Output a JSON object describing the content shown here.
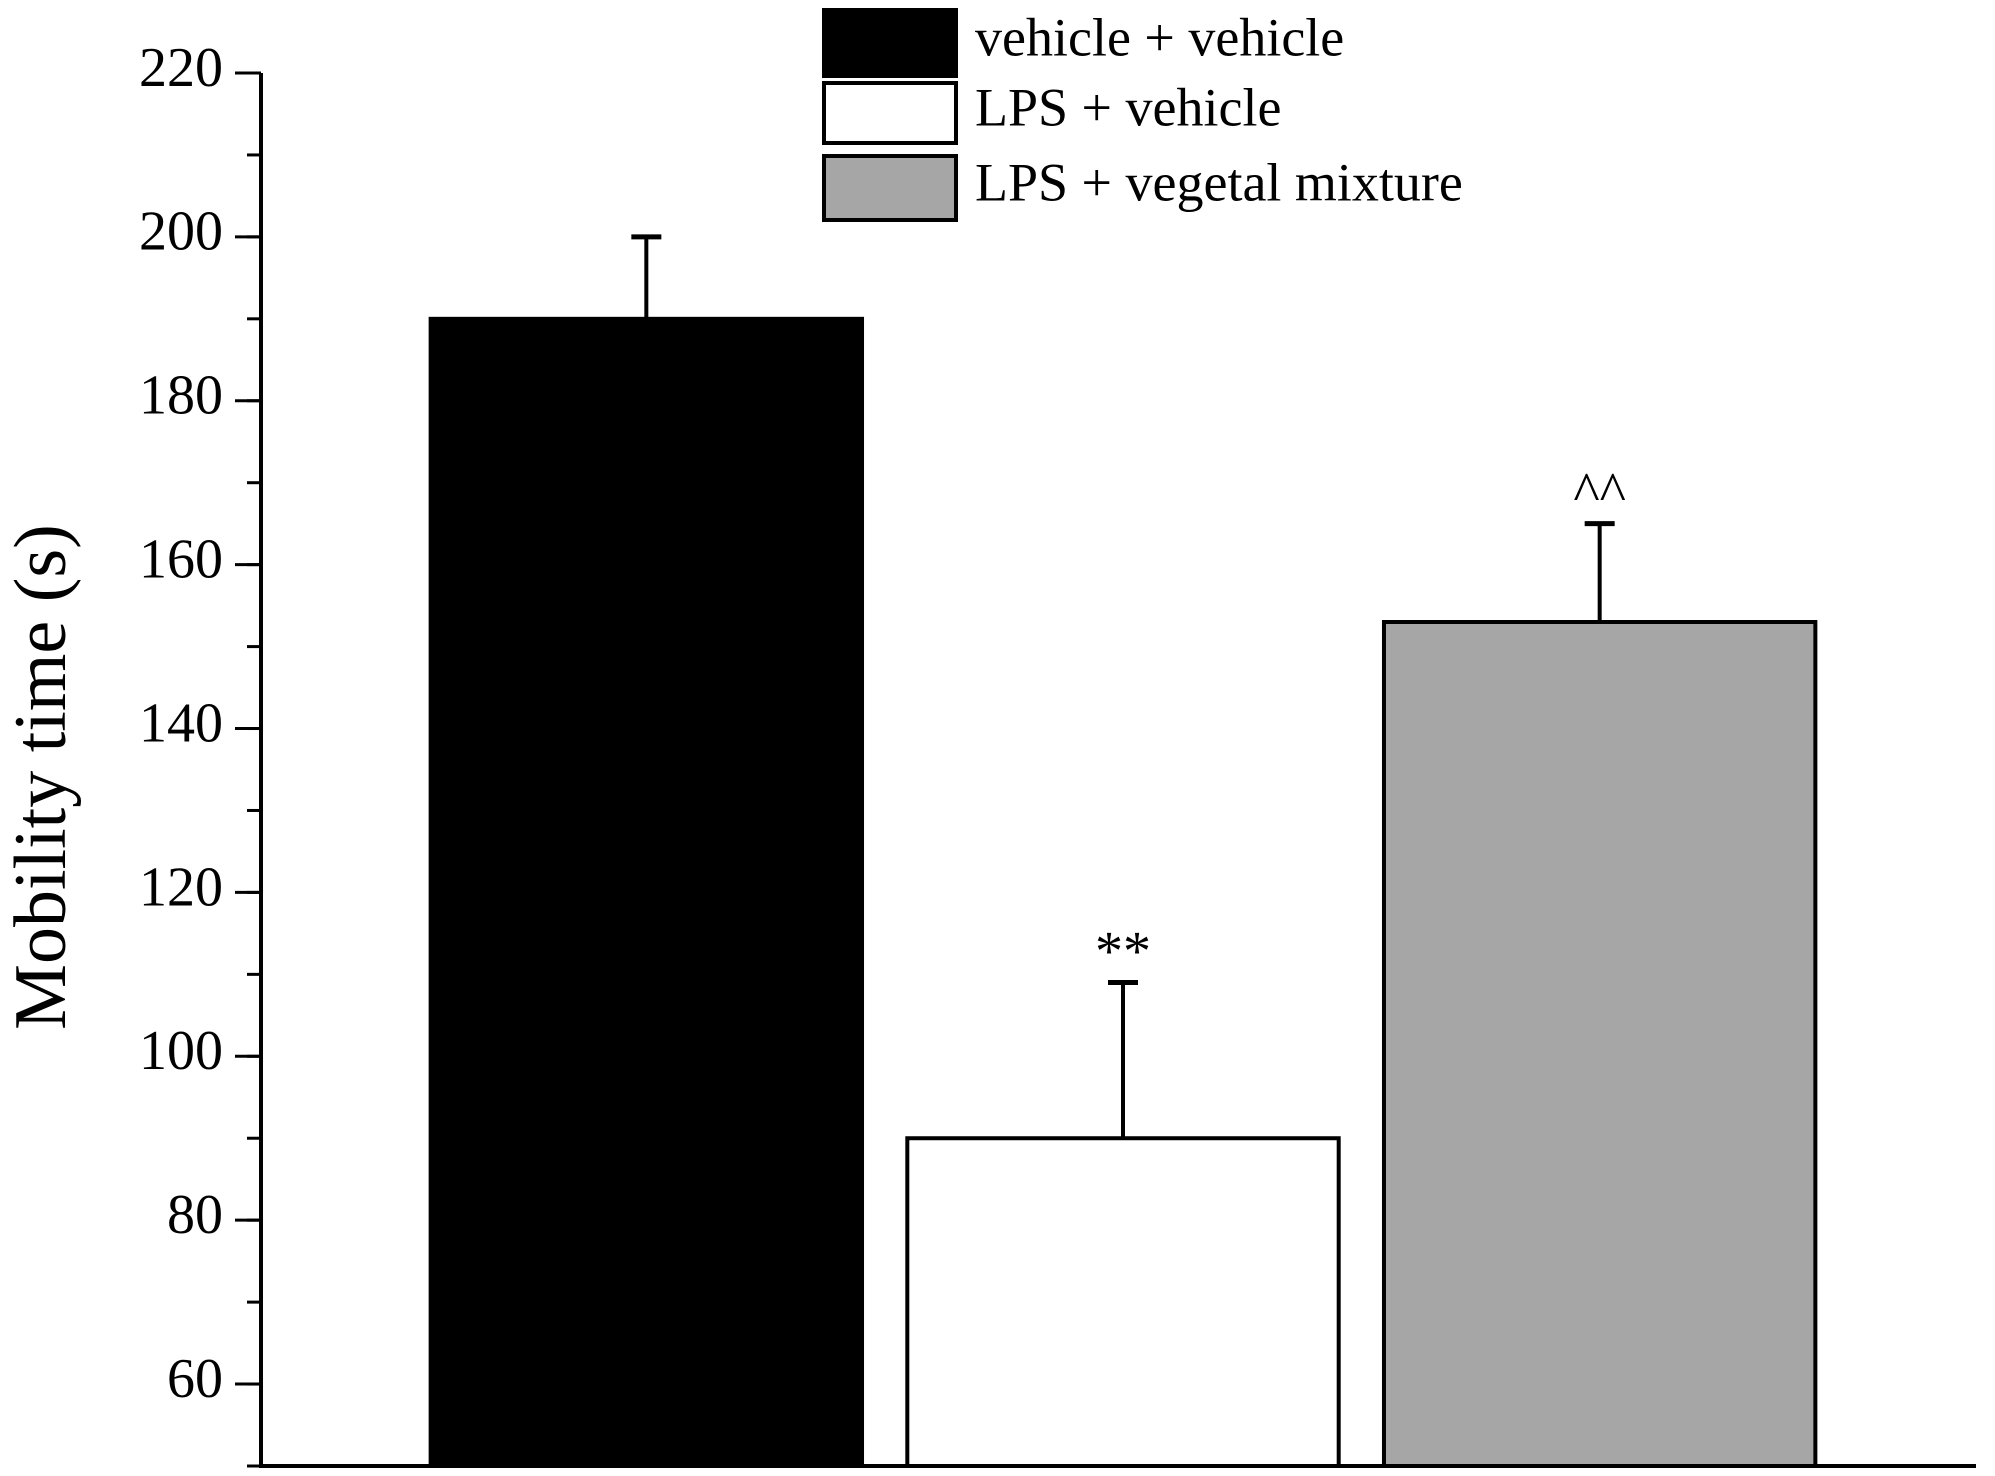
{
  "chart_data": {
    "type": "bar",
    "y_label": "Mobility time (s)",
    "ylim": [
      50,
      220
    ],
    "yticks": [
      60,
      80,
      100,
      120,
      140,
      160,
      180,
      200,
      220
    ],
    "minor_tick_step": 10,
    "series": [
      {
        "name": "vehicle + vehicle",
        "color": "#000000",
        "values": [
          190
        ],
        "errors": [
          10
        ]
      },
      {
        "name": "LPS + vehicle",
        "color": "#ffffff",
        "values": [
          90
        ],
        "errors": [
          19
        ],
        "annotation": "**"
      },
      {
        "name": "LPS + vegetal mixture",
        "color": "#a6a6a6",
        "values": [
          153
        ],
        "errors": [
          12
        ],
        "annotation": "^^"
      }
    ]
  }
}
